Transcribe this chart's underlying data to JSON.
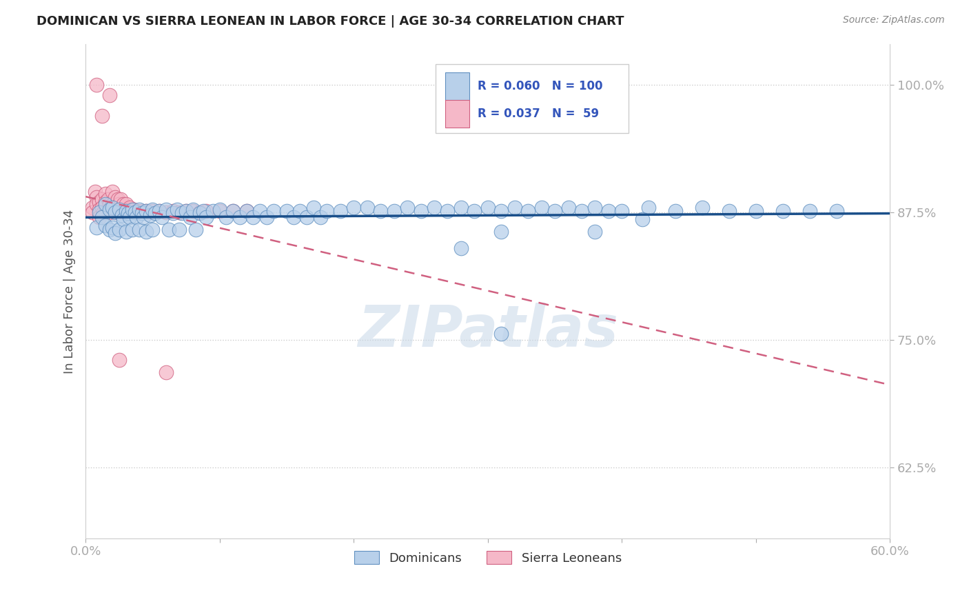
{
  "title": "DOMINICAN VS SIERRA LEONEAN IN LABOR FORCE | AGE 30-34 CORRELATION CHART",
  "source": "Source: ZipAtlas.com",
  "ylabel": "In Labor Force | Age 30-34",
  "xlim": [
    0.0,
    0.6
  ],
  "ylim": [
    0.555,
    1.04
  ],
  "xticks": [
    0.0,
    0.1,
    0.2,
    0.3,
    0.4,
    0.5,
    0.6
  ],
  "xticklabels": [
    "0.0%",
    "",
    "",
    "",
    "",
    "",
    "60.0%"
  ],
  "yticks": [
    0.625,
    0.75,
    0.875,
    1.0
  ],
  "yticklabels": [
    "62.5%",
    "75.0%",
    "87.5%",
    "100.0%"
  ],
  "dominican_R": 0.06,
  "dominican_N": 100,
  "sierraleone_R": 0.037,
  "sierraleone_N": 59,
  "blue_color": "#b8d0ea",
  "blue_edge_color": "#6090c0",
  "blue_line_color": "#1a4f8a",
  "pink_color": "#f5b8c8",
  "pink_edge_color": "#d06080",
  "pink_line_color": "#d06080",
  "legend_label_dominicans": "Dominicans",
  "legend_label_sierraleoneans": "Sierra Leoneans",
  "watermark": "ZIPatlas",
  "dominican_x": [
    0.008,
    0.01,
    0.012,
    0.015,
    0.015,
    0.018,
    0.018,
    0.02,
    0.02,
    0.022,
    0.022,
    0.025,
    0.025,
    0.027,
    0.028,
    0.03,
    0.03,
    0.032,
    0.033,
    0.035,
    0.035,
    0.037,
    0.038,
    0.04,
    0.04,
    0.042,
    0.043,
    0.045,
    0.045,
    0.048,
    0.05,
    0.05,
    0.052,
    0.055,
    0.057,
    0.06,
    0.062,
    0.065,
    0.068,
    0.07,
    0.072,
    0.075,
    0.078,
    0.08,
    0.082,
    0.085,
    0.088,
    0.09,
    0.095,
    0.1,
    0.105,
    0.11,
    0.115,
    0.12,
    0.125,
    0.13,
    0.135,
    0.14,
    0.15,
    0.155,
    0.16,
    0.165,
    0.17,
    0.175,
    0.18,
    0.19,
    0.2,
    0.21,
    0.22,
    0.23,
    0.24,
    0.25,
    0.26,
    0.27,
    0.28,
    0.29,
    0.3,
    0.31,
    0.32,
    0.33,
    0.34,
    0.35,
    0.36,
    0.37,
    0.38,
    0.39,
    0.4,
    0.42,
    0.44,
    0.46,
    0.48,
    0.5,
    0.52,
    0.54,
    0.56,
    0.28,
    0.31,
    0.38,
    0.415,
    0.31
  ],
  "dominican_y": [
    0.86,
    0.875,
    0.87,
    0.883,
    0.862,
    0.878,
    0.858,
    0.88,
    0.86,
    0.875,
    0.855,
    0.878,
    0.858,
    0.872,
    0.868,
    0.876,
    0.856,
    0.874,
    0.87,
    0.878,
    0.858,
    0.875,
    0.87,
    0.878,
    0.858,
    0.874,
    0.87,
    0.876,
    0.856,
    0.872,
    0.878,
    0.858,
    0.874,
    0.876,
    0.87,
    0.878,
    0.858,
    0.874,
    0.878,
    0.858,
    0.874,
    0.876,
    0.87,
    0.878,
    0.858,
    0.874,
    0.876,
    0.87,
    0.876,
    0.878,
    0.87,
    0.876,
    0.87,
    0.876,
    0.87,
    0.876,
    0.87,
    0.876,
    0.876,
    0.87,
    0.876,
    0.87,
    0.88,
    0.87,
    0.876,
    0.876,
    0.88,
    0.88,
    0.876,
    0.876,
    0.88,
    0.876,
    0.88,
    0.876,
    0.88,
    0.876,
    0.88,
    0.876,
    0.88,
    0.876,
    0.88,
    0.876,
    0.88,
    0.876,
    0.88,
    0.876,
    0.876,
    0.88,
    0.876,
    0.88,
    0.876,
    0.876,
    0.876,
    0.876,
    0.876,
    0.84,
    0.856,
    0.856,
    0.868,
    0.756
  ],
  "sierraleone_x": [
    0.005,
    0.005,
    0.007,
    0.008,
    0.008,
    0.01,
    0.01,
    0.01,
    0.012,
    0.012,
    0.013,
    0.015,
    0.015,
    0.015,
    0.017,
    0.018,
    0.018,
    0.019,
    0.02,
    0.02,
    0.021,
    0.022,
    0.022,
    0.023,
    0.024,
    0.025,
    0.025,
    0.026,
    0.027,
    0.028,
    0.028,
    0.03,
    0.03,
    0.032,
    0.033,
    0.035,
    0.036,
    0.038,
    0.04,
    0.042,
    0.045,
    0.047,
    0.05,
    0.055,
    0.06,
    0.065,
    0.07,
    0.075,
    0.08,
    0.085,
    0.09,
    0.1,
    0.11,
    0.12,
    0.025,
    0.008,
    0.012,
    0.018,
    0.06
  ],
  "sierraleone_y": [
    0.88,
    0.875,
    0.895,
    0.89,
    0.883,
    0.885,
    0.878,
    0.87,
    0.888,
    0.88,
    0.875,
    0.893,
    0.885,
    0.875,
    0.888,
    0.883,
    0.875,
    0.88,
    0.895,
    0.883,
    0.878,
    0.89,
    0.88,
    0.875,
    0.888,
    0.883,
    0.875,
    0.888,
    0.878,
    0.883,
    0.875,
    0.883,
    0.875,
    0.878,
    0.88,
    0.876,
    0.878,
    0.876,
    0.875,
    0.876,
    0.876,
    0.875,
    0.876,
    0.876,
    0.875,
    0.876,
    0.875,
    0.876,
    0.876,
    0.875,
    0.876,
    0.876,
    0.876,
    0.876,
    0.73,
    1.0,
    0.97,
    0.99,
    0.718
  ]
}
